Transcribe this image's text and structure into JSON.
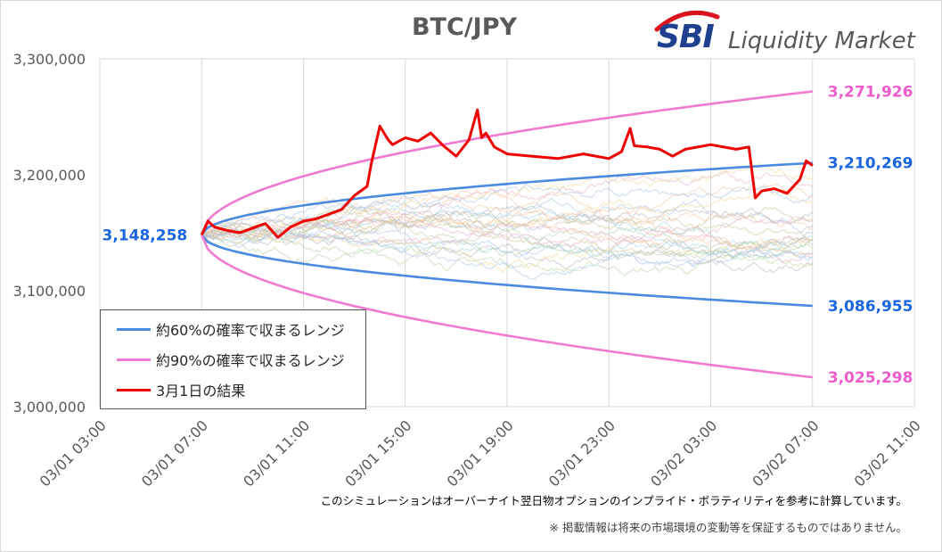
{
  "title": "BTC/JPY",
  "logo": {
    "mark": "SBI",
    "text": "Liquidity Market"
  },
  "legend": [
    {
      "label": "約60%の確率で収まるレンジ",
      "color": "#4a8ae0"
    },
    {
      "label": "約90%の確率で収まるレンジ",
      "color": "#f07ad2"
    },
    {
      "label": "3月1日の結果",
      "color": "#ee0000"
    }
  ],
  "notes": {
    "line1": "このシミュレーションはオーバーナイト翌日物オプションのインプライド・ボラティリティを参考に計算しています。",
    "line2": "※ 掲載情報は将来の市場環境の変動等を保証するものではありません。"
  },
  "chart_data": {
    "type": "line",
    "title": "BTC/JPY",
    "xlabel": "",
    "ylabel": "",
    "x_ticks": [
      "03/01 03:00",
      "03/01 07:00",
      "03/01 11:00",
      "03/01 15:00",
      "03/01 19:00",
      "03/01 23:00",
      "03/02 03:00",
      "03/02 07:00",
      "03/02 11:00"
    ],
    "x_range": [
      "03/01 03:00",
      "03/02 11:00"
    ],
    "ylim": [
      3000000,
      3300000
    ],
    "y_ticks": [
      "3,000,000",
      "3,100,000",
      "3,200,000",
      "3,300,000"
    ],
    "grid": "vertical",
    "legend_position": "bottom-left",
    "start": {
      "time": "03/01 07:00",
      "value": 3148258,
      "label": "3,148,258",
      "color": "#1a66e0"
    },
    "series": [
      {
        "name": "約60%の確率で収まるレンジ",
        "color": "#4a8ae0",
        "upper": {
          "end_time": "03/02 07:00",
          "end_value": 3210269,
          "label": "3,210,269"
        },
        "lower": {
          "end_time": "03/02 07:00",
          "end_value": 3086955,
          "label": "3,086,955"
        }
      },
      {
        "name": "約90%の確率で収まるレンジ",
        "color": "#f07ad2",
        "upper": {
          "end_time": "03/02 07:00",
          "end_value": 3271926,
          "label": "3,271,926"
        },
        "lower": {
          "end_time": "03/02 07:00",
          "end_value": 3025298,
          "label": "3,025,298"
        }
      },
      {
        "name": "3月1日の結果",
        "color": "#ee0000",
        "times": [
          "03/01 07:00",
          "03/01 07:15",
          "03/01 07:30",
          "03/01 08:00",
          "03/01 08:30",
          "03/01 09:00",
          "03/01 09:30",
          "03/01 10:00",
          "03/01 10:30",
          "03/01 11:00",
          "03/01 11:30",
          "03/01 12:00",
          "03/01 12:30",
          "03/01 13:00",
          "03/01 13:30",
          "03/01 13:40",
          "03/01 14:00",
          "03/01 14:20",
          "03/01 14:30",
          "03/01 15:00",
          "03/01 15:30",
          "03/01 16:00",
          "03/01 16:30",
          "03/01 17:00",
          "03/01 17:30",
          "03/01 17:50",
          "03/01 18:00",
          "03/01 18:10",
          "03/01 18:30",
          "03/01 19:00",
          "03/01 20:00",
          "03/01 21:00",
          "03/01 22:00",
          "03/01 23:00",
          "03/01 23:30",
          "03/01 23:50",
          "03/02 00:00",
          "03/02 00:30",
          "03/02 01:00",
          "03/02 01:30",
          "03/02 02:00",
          "03/02 03:00",
          "03/02 04:00",
          "03/02 04:30",
          "03/02 04:45",
          "03/02 05:00",
          "03/02 05:30",
          "03/02 06:00",
          "03/02 06:30",
          "03/02 06:45",
          "03/02 07:00"
        ],
        "values": [
          3148258,
          3160000,
          3155000,
          3152000,
          3150000,
          3154000,
          3158000,
          3146000,
          3155000,
          3160000,
          3162000,
          3166000,
          3170000,
          3182000,
          3190000,
          3210000,
          3242000,
          3230000,
          3226000,
          3232000,
          3229000,
          3236000,
          3225000,
          3216000,
          3230000,
          3256000,
          3232000,
          3236000,
          3224000,
          3218000,
          3216000,
          3214000,
          3218000,
          3214000,
          3220000,
          3240000,
          3225000,
          3224000,
          3222000,
          3216000,
          3222000,
          3226000,
          3222000,
          3224000,
          3180000,
          3186000,
          3188000,
          3184000,
          3196000,
          3212000,
          3208000
        ]
      }
    ]
  }
}
